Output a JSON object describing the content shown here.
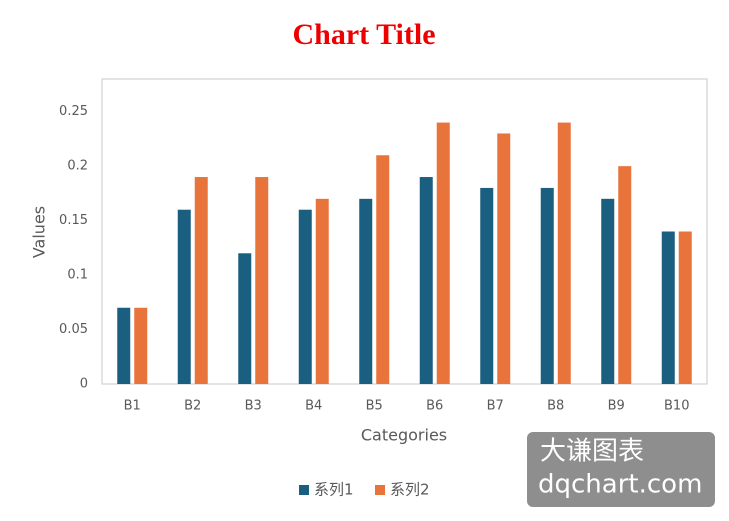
{
  "chart_data": {
    "type": "bar",
    "title": "Chart Title",
    "x_label": "Categories",
    "y_label": "Values",
    "categories": [
      "B1",
      "B2",
      "B3",
      "B4",
      "B5",
      "B6",
      "B7",
      "B8",
      "B9",
      "B10"
    ],
    "series": [
      {
        "name": "系列1",
        "color": "#1b5f80",
        "values": [
          0.07,
          0.16,
          0.12,
          0.16,
          0.17,
          0.19,
          0.18,
          0.18,
          0.17,
          0.14
        ]
      },
      {
        "name": "系列2",
        "color": "#e8743b",
        "values": [
          0.07,
          0.19,
          0.19,
          0.17,
          0.21,
          0.24,
          0.23,
          0.24,
          0.2,
          0.14
        ]
      }
    ],
    "ylim": [
      0,
      0.28
    ],
    "yticks": [
      0,
      0.05,
      0.1,
      0.15,
      0.2,
      0.25
    ],
    "grid": false,
    "legend": "bottom",
    "watermark": [
      "大谦图表",
      "dqchart.com"
    ]
  }
}
